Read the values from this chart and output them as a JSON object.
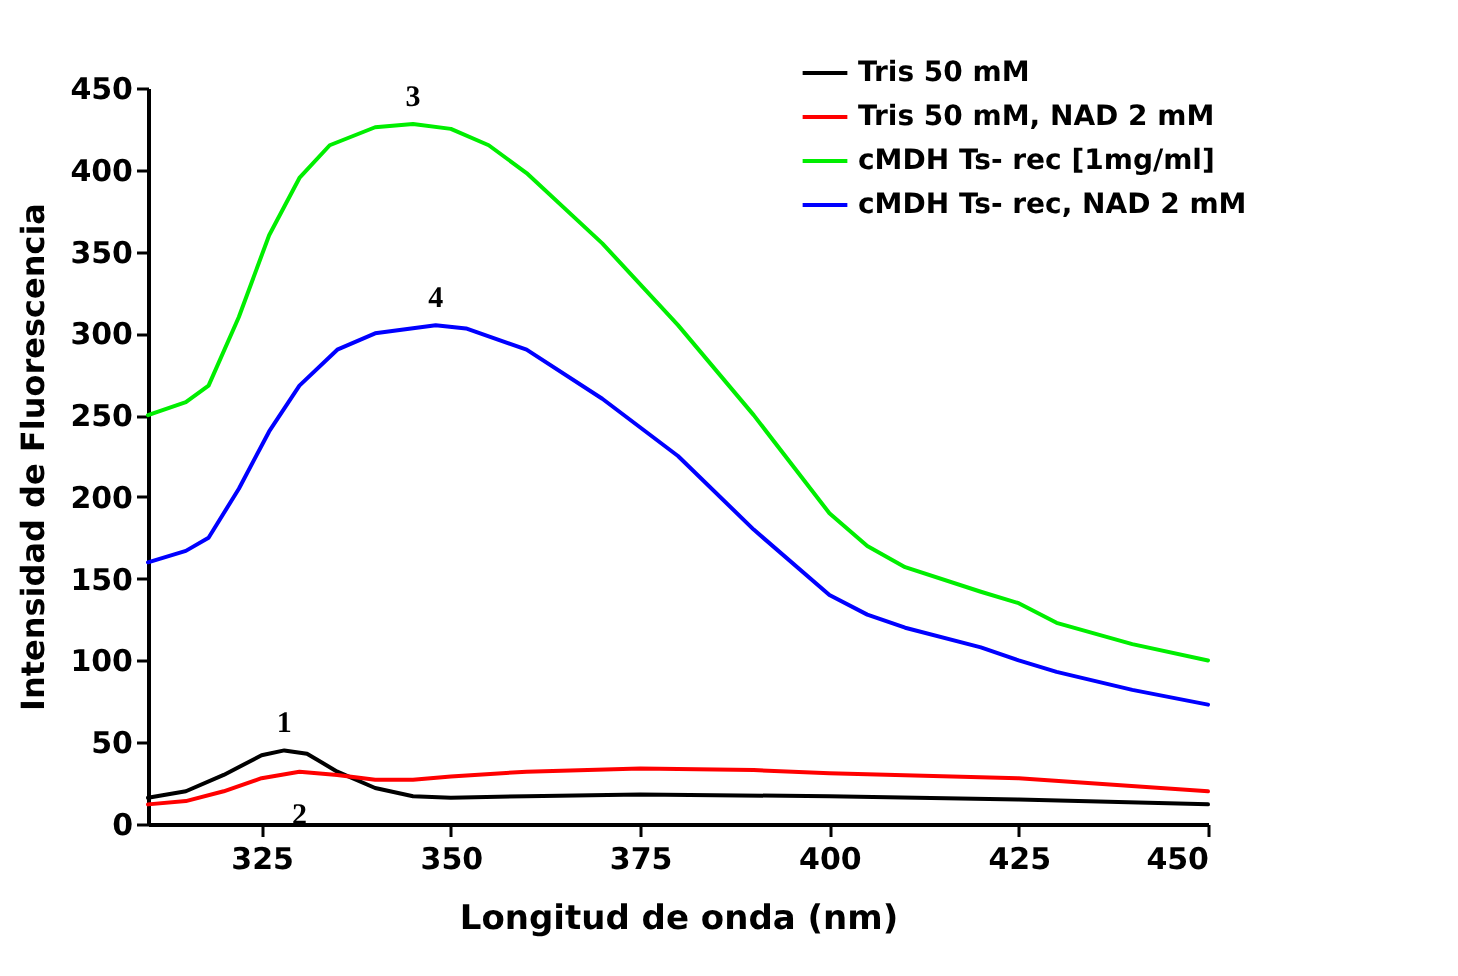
{
  "chart_data": {
    "type": "line",
    "xlabel": "Longitud de onda (nm)",
    "ylabel": "Intensidad de Fluorescencia",
    "xlim": [
      310,
      450
    ],
    "xticks": [
      325,
      350,
      375,
      400,
      425,
      450
    ],
    "ylim": [
      0,
      450
    ],
    "yticks": [
      0,
      50,
      100,
      150,
      200,
      250,
      300,
      350,
      400,
      450
    ],
    "grid": false,
    "legend": "top right",
    "marker": "none",
    "line_style": "solid",
    "annotations": [
      {
        "text": "1",
        "x": 328,
        "y": 45
      },
      {
        "text": "2",
        "x": 330,
        "y": 32
      },
      {
        "text": "3",
        "x": 345,
        "y": 428
      },
      {
        "text": "4",
        "x": 348,
        "y": 305
      }
    ],
    "series": [
      {
        "name": "Tris 50 mM",
        "color": "#000000",
        "x": [
          310,
          315,
          320,
          325,
          328,
          331,
          335,
          340,
          345,
          350,
          360,
          375,
          400,
          425,
          450
        ],
        "values": [
          16,
          20,
          30,
          42,
          45,
          43,
          32,
          22,
          17,
          16,
          17,
          18,
          17,
          15,
          12
        ]
      },
      {
        "name": "Tris 50 mM, NAD 2 mM",
        "color": "#ff0000",
        "x": [
          310,
          315,
          320,
          325,
          330,
          335,
          340,
          345,
          350,
          360,
          375,
          390,
          400,
          425,
          450
        ],
        "values": [
          12,
          14,
          20,
          28,
          32,
          30,
          27,
          27,
          29,
          32,
          34,
          33,
          31,
          28,
          20
        ]
      },
      {
        "name": "cMDH Ts- rec [1mg/ml]",
        "color": "#00ee00",
        "x": [
          310,
          315,
          318,
          322,
          326,
          330,
          334,
          340,
          345,
          350,
          355,
          360,
          370,
          380,
          390,
          400,
          405,
          410,
          420,
          425,
          430,
          440,
          450
        ],
        "values": [
          250,
          258,
          268,
          310,
          360,
          395,
          415,
          426,
          428,
          425,
          415,
          398,
          355,
          305,
          250,
          190,
          170,
          157,
          142,
          135,
          123,
          110,
          100
        ]
      },
      {
        "name": "cMDH Ts- rec, NAD 2 mM",
        "color": "#0000ff",
        "x": [
          310,
          315,
          318,
          322,
          326,
          330,
          335,
          340,
          348,
          352,
          360,
          370,
          380,
          390,
          400,
          405,
          410,
          420,
          425,
          430,
          440,
          450
        ],
        "values": [
          160,
          167,
          175,
          205,
          240,
          268,
          290,
          300,
          305,
          303,
          290,
          260,
          225,
          180,
          140,
          128,
          120,
          108,
          100,
          93,
          82,
          73
        ]
      }
    ]
  }
}
